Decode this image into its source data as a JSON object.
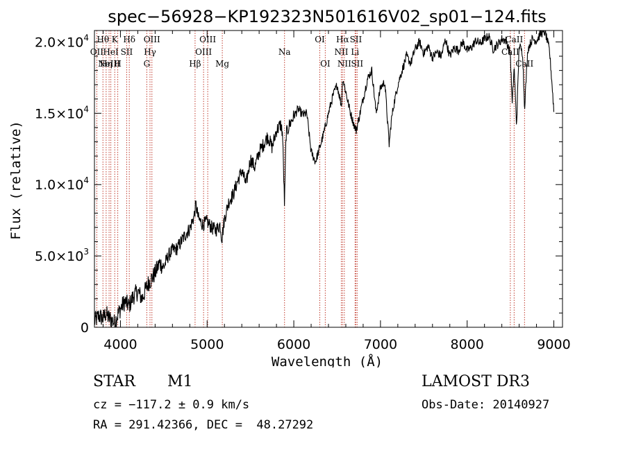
{
  "chart_data": {
    "type": "line",
    "title": "spec−56928−KP192323N501616V02_sp01−124.fits",
    "xlabel": "Wavelength (Å)",
    "ylabel": "Flux (relative)",
    "xlim": [
      3700,
      9100
    ],
    "ylim": [
      0,
      20800
    ],
    "xticks": [
      {
        "value": 4000,
        "label": "4000"
      },
      {
        "value": 5000,
        "label": "5000"
      },
      {
        "value": 6000,
        "label": "6000"
      },
      {
        "value": 7000,
        "label": "7000"
      },
      {
        "value": 8000,
        "label": "8000"
      },
      {
        "value": 9000,
        "label": "9000"
      }
    ],
    "yticks": [
      {
        "value": 0,
        "mant": "0",
        "exp": ""
      },
      {
        "value": 5000,
        "mant": "5.0×10",
        "exp": "3"
      },
      {
        "value": 10000,
        "mant": "1.0×10",
        "exp": "4"
      },
      {
        "value": 15000,
        "mant": "1.5×10",
        "exp": "4"
      },
      {
        "value": 20000,
        "mant": "2.0×10",
        "exp": "4"
      }
    ],
    "spectrum": {
      "x": [
        3700,
        3750,
        3800,
        3830,
        3860,
        3900,
        3930,
        3970,
        4000,
        4050,
        4100,
        4150,
        4200,
        4250,
        4300,
        4330,
        4350,
        4400,
        4450,
        4500,
        4550,
        4600,
        4650,
        4700,
        4750,
        4800,
        4850,
        4870,
        4900,
        4950,
        5000,
        5050,
        5100,
        5150,
        5170,
        5200,
        5250,
        5300,
        5350,
        5400,
        5450,
        5500,
        5550,
        5600,
        5650,
        5700,
        5750,
        5800,
        5850,
        5870,
        5893,
        5910,
        5950,
        6000,
        6050,
        6100,
        6150,
        6200,
        6250,
        6300,
        6350,
        6400,
        6450,
        6500,
        6550,
        6563,
        6600,
        6650,
        6700,
        6720,
        6750,
        6800,
        6850,
        6900,
        6950,
        7000,
        7050,
        7100,
        7125,
        7150,
        7200,
        7250,
        7300,
        7350,
        7400,
        7450,
        7500,
        7550,
        7600,
        7650,
        7700,
        7750,
        7800,
        7850,
        7900,
        7950,
        8000,
        8050,
        8100,
        8150,
        8200,
        8250,
        8300,
        8350,
        8400,
        8450,
        8498,
        8520,
        8542,
        8570,
        8600,
        8640,
        8662,
        8700,
        8750,
        8800,
        8850,
        8900,
        8950,
        8980,
        9000
      ],
      "y": [
        400,
        800,
        600,
        1000,
        700,
        500,
        300,
        900,
        1300,
        1800,
        1500,
        2200,
        2500,
        2000,
        2800,
        3200,
        3300,
        3800,
        4500,
        4200,
        5000,
        5400,
        5500,
        6000,
        6500,
        6900,
        7800,
        8600,
        7600,
        7200,
        7400,
        7000,
        6800,
        7200,
        6200,
        7600,
        8800,
        9300,
        10200,
        11000,
        10000,
        11800,
        11200,
        12300,
        12800,
        13400,
        12600,
        13800,
        14200,
        13600,
        8500,
        13500,
        14200,
        14800,
        15300,
        14900,
        15000,
        12300,
        11600,
        12600,
        13700,
        15000,
        16200,
        17000,
        15500,
        17500,
        16500,
        15100,
        14100,
        13800,
        14600,
        16000,
        17400,
        18000,
        15000,
        16800,
        17200,
        12800,
        14500,
        15500,
        17000,
        18000,
        19000,
        18500,
        19500,
        20000,
        19200,
        19700,
        18900,
        19300,
        19000,
        20200,
        19000,
        19600,
        19400,
        20000,
        19400,
        19600,
        20100,
        19900,
        20200,
        20400,
        19500,
        19800,
        20200,
        20100,
        19200,
        15600,
        18300,
        14100,
        19800,
        19200,
        15400,
        19500,
        20200,
        20100,
        20600,
        20700,
        19400,
        17000,
        15200
      ]
    },
    "lines": [
      {
        "wave": 3727,
        "label": "OII",
        "row": 1
      },
      {
        "wave": 3798,
        "label": "Hθ",
        "row": 0
      },
      {
        "wave": 3835,
        "label": "Hη",
        "row": 2
      },
      {
        "wave": 3869,
        "label": "NeIII",
        "row": 2
      },
      {
        "wave": 3889,
        "label": "HeI",
        "row": 1
      },
      {
        "wave": 3934,
        "label": "K",
        "row": 0
      },
      {
        "wave": 3969,
        "label": "H",
        "row": 2
      },
      {
        "wave": 4072,
        "label": "SII",
        "row": 1
      },
      {
        "wave": 4102,
        "label": "Hδ",
        "row": 0
      },
      {
        "wave": 4304,
        "label": "G",
        "row": 2
      },
      {
        "wave": 4341,
        "label": "Hγ",
        "row": 1
      },
      {
        "wave": 4363,
        "label": "OIII",
        "row": 0
      },
      {
        "wave": 4861,
        "label": "Hβ",
        "row": 2
      },
      {
        "wave": 4959,
        "label": "OIII",
        "row": 1
      },
      {
        "wave": 5007,
        "label": "OIII",
        "row": 0
      },
      {
        "wave": 5175,
        "label": "Mg",
        "row": 2
      },
      {
        "wave": 5893,
        "label": "Na",
        "row": 1
      },
      {
        "wave": 6300,
        "label": "OI",
        "row": 0
      },
      {
        "wave": 6363,
        "label": "OI",
        "row": 2
      },
      {
        "wave": 6548,
        "label": "NII",
        "row": 1
      },
      {
        "wave": 6563,
        "label": "Hα",
        "row": 0
      },
      {
        "wave": 6583,
        "label": "NII",
        "row": 2
      },
      {
        "wave": 6707,
        "label": "Li",
        "row": 1
      },
      {
        "wave": 6716,
        "label": "SII",
        "row": 0
      },
      {
        "wave": 6731,
        "label": "SII",
        "row": 2
      },
      {
        "wave": 8498,
        "label": "CaII",
        "row": 1
      },
      {
        "wave": 8542,
        "label": "CaII",
        "row": 0
      },
      {
        "wave": 8662,
        "label": "CaII",
        "row": 2
      }
    ]
  },
  "footer": {
    "object_class": "STAR",
    "subclass": "M1",
    "survey": "LAMOST DR3",
    "cz": "cz = −117.2 ± 0.9 km/s",
    "obs_date": "Obs-Date: 20140927",
    "coords": "RA = 291.42366, DEC =  48.27292"
  }
}
